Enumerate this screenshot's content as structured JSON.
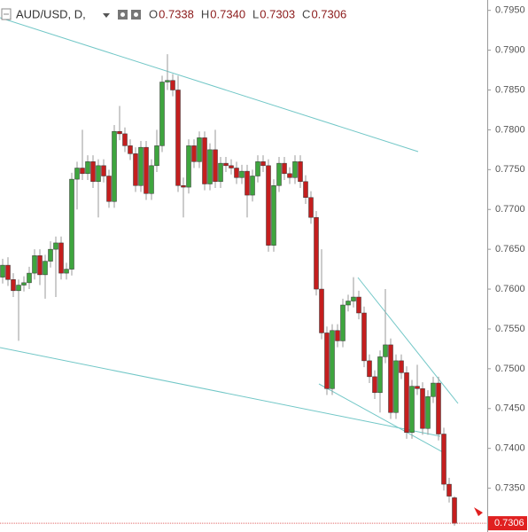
{
  "chart_data": {
    "type": "candlestick",
    "symbol": "AUD/USD, D,",
    "ohlc_legend": [
      {
        "key": "O",
        "text": "0.7338"
      },
      {
        "key": "H",
        "text": "0.7340"
      },
      {
        "key": "L",
        "text": "0.7303"
      },
      {
        "key": "C",
        "text": "0.7306"
      }
    ],
    "up_color": "#3ea53e",
    "down_color": "#c41e1e",
    "ylim": [
      0.7295,
      0.7963
    ],
    "yticks": [
      {
        "value": 0.795,
        "label": "0.7950"
      },
      {
        "value": 0.79,
        "label": "0.7900"
      },
      {
        "value": 0.785,
        "label": "0.7850"
      },
      {
        "value": 0.78,
        "label": "0.7800"
      },
      {
        "value": 0.775,
        "label": "0.7750"
      },
      {
        "value": 0.77,
        "label": "0.7700"
      },
      {
        "value": 0.765,
        "label": "0.7650"
      },
      {
        "value": 0.76,
        "label": "0.7600"
      },
      {
        "value": 0.755,
        "label": "0.7550"
      },
      {
        "value": 0.75,
        "label": "0.7500"
      },
      {
        "value": 0.745,
        "label": "0.7450"
      },
      {
        "value": 0.74,
        "label": "0.7400"
      },
      {
        "value": 0.735,
        "label": "0.7350"
      }
    ],
    "last_price": {
      "value": 0.7306,
      "label": "0.7306"
    },
    "grid": false,
    "open": [
      0.7615,
      0.763,
      0.7612,
      0.7598,
      0.7605,
      0.7608,
      0.762,
      0.7642,
      0.7618,
      0.7635,
      0.765,
      0.7658,
      0.762,
      0.7625,
      0.7738,
      0.7752,
      0.7745,
      0.776,
      0.7735,
      0.7755,
      0.7742,
      0.771,
      0.7798,
      0.7795,
      0.778,
      0.777,
      0.773,
      0.7778,
      0.772,
      0.7755,
      0.778,
      0.786,
      0.7862,
      0.785,
      0.773,
      0.7728,
      0.778,
      0.776,
      0.779,
      0.7732,
      0.7775,
      0.7735,
      0.7758,
      0.7755,
      0.7752,
      0.774,
      0.7748,
      0.7718,
      0.7742,
      0.776,
      0.7755,
      0.7655,
      0.773,
      0.7758,
      0.7745,
      0.774,
      0.776,
      0.7735,
      0.7715,
      0.769,
      0.76,
      0.7545,
      0.7475,
      0.7548,
      0.7535,
      0.758,
      0.7585,
      0.759,
      0.757,
      0.751,
      0.749,
      0.747,
      0.7515,
      0.753,
      0.7445,
      0.751,
      0.7495,
      0.742,
      0.7478,
      0.7475,
      0.7425,
      0.7465,
      0.7482,
      0.7418,
      0.7355,
      0.7338
    ],
    "high": [
      0.7638,
      0.764,
      0.762,
      0.7612,
      0.7616,
      0.7628,
      0.765,
      0.765,
      0.7643,
      0.766,
      0.7666,
      0.7666,
      0.7633,
      0.7746,
      0.776,
      0.78,
      0.7768,
      0.7768,
      0.7763,
      0.7763,
      0.775,
      0.7806,
      0.783,
      0.7803,
      0.7788,
      0.7778,
      0.7786,
      0.7786,
      0.7763,
      0.78,
      0.7868,
      0.7895,
      0.787,
      0.7868,
      0.774,
      0.7788,
      0.7788,
      0.7798,
      0.7798,
      0.7783,
      0.78,
      0.7766,
      0.7766,
      0.7763,
      0.776,
      0.7756,
      0.7756,
      0.775,
      0.7768,
      0.7768,
      0.7763,
      0.7738,
      0.7766,
      0.7766,
      0.7753,
      0.7768,
      0.7768,
      0.7743,
      0.7723,
      0.7698,
      0.765,
      0.7553,
      0.7556,
      0.7556,
      0.7588,
      0.7593,
      0.7615,
      0.7598,
      0.7578,
      0.7518,
      0.7498,
      0.7523,
      0.76,
      0.7538,
      0.7518,
      0.7518,
      0.7503,
      0.7486,
      0.7505,
      0.7483,
      0.7473,
      0.749,
      0.749,
      0.7426,
      0.7363,
      0.734
    ],
    "low": [
      0.7607,
      0.7604,
      0.759,
      0.7535,
      0.7597,
      0.76,
      0.7612,
      0.7605,
      0.7588,
      0.7627,
      0.759,
      0.7612,
      0.7612,
      0.7617,
      0.77,
      0.7737,
      0.7737,
      0.7727,
      0.769,
      0.7734,
      0.7702,
      0.7702,
      0.7787,
      0.7772,
      0.7762,
      0.7722,
      0.7722,
      0.7712,
      0.7712,
      0.7747,
      0.7772,
      0.785,
      0.7842,
      0.7722,
      0.769,
      0.772,
      0.7752,
      0.7752,
      0.7724,
      0.7724,
      0.7727,
      0.7727,
      0.7747,
      0.7744,
      0.7732,
      0.7732,
      0.769,
      0.771,
      0.7734,
      0.7747,
      0.7647,
      0.7647,
      0.7722,
      0.7737,
      0.7732,
      0.7732,
      0.7727,
      0.7707,
      0.7682,
      0.7592,
      0.7537,
      0.7467,
      0.7467,
      0.7527,
      0.7527,
      0.7572,
      0.7577,
      0.7562,
      0.7502,
      0.7482,
      0.7462,
      0.7445,
      0.7507,
      0.7437,
      0.7437,
      0.7487,
      0.7412,
      0.7412,
      0.7467,
      0.7417,
      0.7417,
      0.7457,
      0.741,
      0.7347,
      0.7332,
      0.7303
    ],
    "close": [
      0.763,
      0.7612,
      0.7598,
      0.7605,
      0.7608,
      0.762,
      0.7642,
      0.7618,
      0.7635,
      0.765,
      0.7658,
      0.762,
      0.7625,
      0.7738,
      0.7752,
      0.7745,
      0.776,
      0.7735,
      0.7755,
      0.7742,
      0.771,
      0.7798,
      0.7795,
      0.778,
      0.777,
      0.773,
      0.7778,
      0.772,
      0.7755,
      0.778,
      0.786,
      0.7862,
      0.785,
      0.773,
      0.7728,
      0.778,
      0.776,
      0.779,
      0.7732,
      0.7775,
      0.7735,
      0.7758,
      0.7755,
      0.7752,
      0.774,
      0.7748,
      0.7718,
      0.7742,
      0.776,
      0.7755,
      0.7655,
      0.773,
      0.7758,
      0.7745,
      0.774,
      0.776,
      0.7735,
      0.7715,
      0.769,
      0.76,
      0.7545,
      0.7475,
      0.7548,
      0.7535,
      0.758,
      0.7585,
      0.759,
      0.757,
      0.751,
      0.749,
      0.747,
      0.7515,
      0.753,
      0.7445,
      0.751,
      0.7495,
      0.742,
      0.7478,
      0.7475,
      0.7425,
      0.7465,
      0.7482,
      0.7418,
      0.7355,
      0.734,
      0.7306
    ]
  }
}
